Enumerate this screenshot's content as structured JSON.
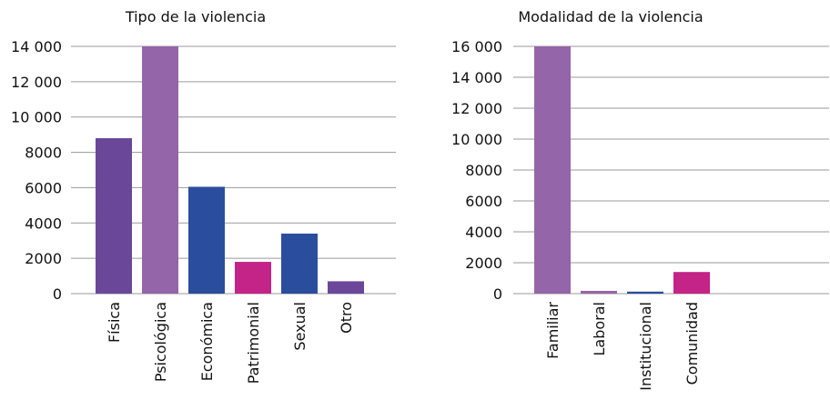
{
  "chart_data": [
    {
      "type": "bar",
      "title": "Tipo de la violencia",
      "xlabel": "",
      "ylabel": "",
      "ylim": [
        0,
        14000
      ],
      "yticks": [
        0,
        2000,
        4000,
        6000,
        8000,
        10000,
        12000,
        14000
      ],
      "ytick_labels": [
        "0",
        "2000",
        "4000",
        "6000",
        "8000",
        "10 000",
        "12 000",
        "14 000"
      ],
      "grid": true,
      "categories": [
        "Física",
        "Psicológica",
        "Económica",
        "Patrimonial",
        "Sexual",
        "Otro"
      ],
      "values": [
        8800,
        14000,
        6050,
        1800,
        3400,
        700
      ],
      "colors": [
        "#6a4799",
        "#9565a9",
        "#2b4d9e",
        "#c42387",
        "#2b4d9e",
        "#6a4799"
      ]
    },
    {
      "type": "bar",
      "title": "Modalidad de la violencia",
      "xlabel": "",
      "ylabel": "",
      "ylim": [
        0,
        16000
      ],
      "yticks": [
        0,
        2000,
        4000,
        6000,
        8000,
        10000,
        12000,
        14000,
        16000
      ],
      "ytick_labels": [
        "0",
        "2000",
        "4000",
        "6000",
        "8000",
        "10 000",
        "12 000",
        "14 000",
        "16 000"
      ],
      "grid": true,
      "categories": [
        "Familiar",
        "Laboral",
        "Institucional",
        "Comunidad"
      ],
      "values": [
        16000,
        180,
        130,
        1400
      ],
      "colors": [
        "#9565a9",
        "#9565a9",
        "#2b4d9e",
        "#c42387"
      ]
    }
  ]
}
